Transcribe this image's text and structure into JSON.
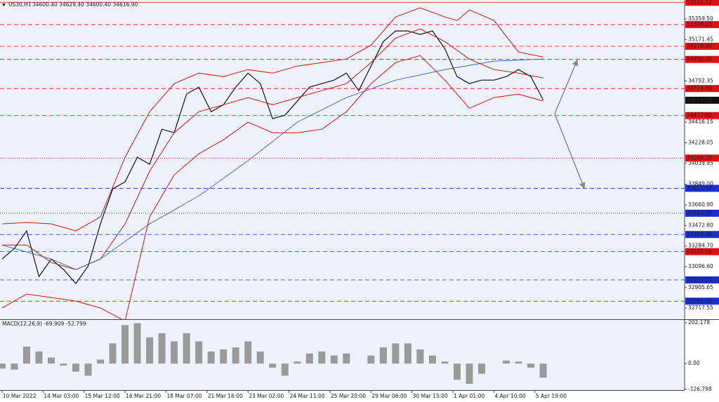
{
  "header": {
    "symbol": "US30,H1",
    "ohlc": "34600.40 34629.40 34600.40 34616.90"
  },
  "chart_data": [
    {
      "type": "line",
      "xlim": [
        -0.5,
        166.5
      ],
      "ylim": [
        32616,
        35533
      ],
      "yticks": [
        {
          "value": 35359.5,
          "label": "35359.50"
        },
        {
          "value": 35171.45,
          "label": "35171.45"
        },
        {
          "value": 34792.35,
          "label": "34792.35"
        },
        {
          "value": 34416.15,
          "label": "34416.15"
        },
        {
          "value": 34228.05,
          "label": "34228.05"
        },
        {
          "value": 34039.95,
          "label": "34039.95"
        },
        {
          "value": 33849,
          "label": "33849.00"
        },
        {
          "value": 33660.9,
          "label": "33660.90"
        },
        {
          "value": 33472.8,
          "label": "33472.80"
        },
        {
          "value": 33284.7,
          "label": "33284.70"
        },
        {
          "value": 33096.6,
          "label": "33096.60"
        },
        {
          "value": 32905.65,
          "label": "32905.65"
        },
        {
          "value": 32717.55,
          "label": "32717.55"
        }
      ],
      "levels": [
        {
          "value": 35512.12,
          "label": "35512.12",
          "color": "#e01010",
          "style": "solid"
        },
        {
          "value": 35308.23,
          "label": "35308.23",
          "color": "#e01010",
          "style": "dashed"
        },
        {
          "value": 35110,
          "label": "35110.00",
          "color": "#e01010",
          "style": "dashed"
        },
        {
          "value": 34990,
          "label": "34990.00",
          "color": "#e01010",
          "style": "dashed"
        },
        {
          "value": 34724,
          "label": "34724.00",
          "color": "#e01010",
          "style": "dashed"
        },
        {
          "value": 34616.9,
          "label": "34616.90",
          "color": "#111111",
          "style": "none"
        },
        {
          "value": 34477,
          "label": "34477.00",
          "color": "#e01010",
          "style": "dashed"
        },
        {
          "value": 34088.2,
          "label": "34088.20",
          "color": "#e01010",
          "style": "dotted"
        },
        {
          "value": 33811.92,
          "label": "33811.92",
          "color": "#1a2fd0",
          "style": "dashed"
        },
        {
          "value": 33584.59,
          "label": "33584.59",
          "color": "#1a2fd0",
          "style": "dotted"
        },
        {
          "value": 33390,
          "label": "33390.00",
          "color": "#1a2fd0",
          "style": "dashed"
        },
        {
          "value": 33233.63,
          "label": "33233.63",
          "color": "#e01010",
          "style": "dashed"
        },
        {
          "value": 32975,
          "label": "32975.00",
          "color": "#1a2fd0",
          "style": "dashed"
        },
        {
          "value": 32781,
          "label": "32781.00",
          "color": "#1a2fd0",
          "style": "dashed"
        }
      ],
      "series": [
        {
          "color": "#111111",
          "width": 1.2,
          "x": [
            0,
            3,
            6,
            9,
            12,
            15,
            18,
            21,
            24,
            27,
            30,
            33,
            36,
            39,
            42,
            45,
            48,
            51,
            54,
            57,
            60,
            63,
            66,
            69,
            72,
            75,
            78,
            81,
            84,
            87,
            90,
            93,
            96,
            99,
            102,
            105,
            108,
            111,
            114,
            117,
            120,
            123,
            126,
            129,
            132
          ],
          "values": [
            33166,
            33262,
            33423,
            33006,
            33166,
            33070,
            32942,
            33102,
            33487,
            33807,
            33871,
            34096,
            34032,
            34352,
            34320,
            34673,
            34737,
            34512,
            34576,
            34737,
            34865,
            34769,
            34448,
            34480,
            34608,
            34737,
            34769,
            34801,
            34865,
            34705,
            34929,
            35153,
            35250,
            35250,
            35218,
            35250,
            35089,
            34833,
            34769,
            34801,
            34801,
            34833,
            34897,
            34833,
            34621
          ]
        },
        {
          "color": "#e01010",
          "width": 1,
          "x": [
            0,
            6,
            12,
            18,
            24,
            30,
            36,
            42,
            48,
            54,
            60,
            66,
            72,
            78,
            84,
            90,
            96,
            102,
            108,
            111,
            114,
            120,
            126,
            132
          ],
          "values": [
            33487,
            33500,
            33487,
            33423,
            33551,
            34096,
            34512,
            34769,
            34865,
            34833,
            34897,
            34865,
            34929,
            34961,
            34993,
            35121,
            35378,
            35461,
            35378,
            35346,
            35442,
            35346,
            35057,
            35012
          ]
        },
        {
          "color": "#e01010",
          "width": 1,
          "x": [
            0,
            6,
            12,
            18,
            24,
            30,
            36,
            42,
            48,
            54,
            60,
            66,
            72,
            78,
            84,
            90,
            96,
            102,
            108,
            114,
            120,
            126,
            132
          ],
          "values": [
            33294,
            33294,
            33134,
            33070,
            33166,
            33487,
            33968,
            34320,
            34512,
            34576,
            34641,
            34576,
            34641,
            34705,
            34769,
            34961,
            35185,
            35269,
            35153,
            34993,
            34897,
            34865,
            34820
          ]
        },
        {
          "color": "#e01010",
          "width": 1,
          "x": [
            0,
            6,
            12,
            18,
            24,
            30,
            36,
            42,
            48,
            54,
            60,
            66,
            72,
            78,
            84,
            90,
            96,
            102,
            108,
            114,
            120,
            126,
            132
          ],
          "values": [
            32718,
            32846,
            32814,
            32782,
            32718,
            32600,
            33551,
            33935,
            34128,
            34256,
            34416,
            34320,
            34320,
            34352,
            34512,
            34769,
            34961,
            35025,
            34801,
            34544,
            34641,
            34673,
            34609
          ]
        },
        {
          "color": "#3048d0",
          "width": 0.8,
          "x": [
            0,
            12,
            18,
            24,
            36,
            48,
            60,
            72,
            84,
            96,
            108,
            120,
            132
          ],
          "values": [
            33294,
            33166,
            33070,
            33166,
            33487,
            33743,
            34064,
            34416,
            34641,
            34801,
            34897,
            34974,
            34993
          ]
        }
      ]
    },
    {
      "type": "bar",
      "title": "MACD(12,26,9) -69.909 -52.799",
      "color": "#9a9a9a",
      "xlim": [
        -0.5,
        166.5
      ],
      "ylim": [
        -131,
        216
      ],
      "yticks": [
        202.178,
        {
          "value": 0,
          "label": "0.00"
        },
        -126.798
      ],
      "x": [
        0,
        3,
        6,
        9,
        12,
        15,
        18,
        21,
        24,
        27,
        30,
        33,
        36,
        39,
        42,
        45,
        48,
        51,
        54,
        57,
        60,
        63,
        66,
        69,
        72,
        75,
        78,
        81,
        84,
        87,
        90,
        93,
        96,
        99,
        102,
        105,
        108,
        111,
        114,
        117,
        120,
        123,
        126,
        129,
        132
      ],
      "values": [
        -25,
        -30,
        84,
        60,
        30,
        -10,
        -40,
        -60,
        20,
        100,
        190,
        200,
        130,
        150,
        110,
        150,
        110,
        60,
        70,
        80,
        110,
        60,
        -20,
        -60,
        10,
        50,
        60,
        40,
        50,
        0,
        40,
        80,
        100,
        100,
        70,
        40,
        10,
        -80,
        -100,
        -50,
        0,
        15,
        10,
        -20,
        -70
      ],
      "xticks": [
        {
          "value": 0,
          "label": "10 Mar 2022"
        },
        {
          "value": 10,
          "label": "14 Mar 03:00"
        },
        {
          "value": 20,
          "label": "15 Mar 12:00"
        },
        {
          "value": 30,
          "label": "16 Mar 21:00"
        },
        {
          "value": 40,
          "label": "18 Mar 07:00"
        },
        {
          "value": 50,
          "label": "21 Mar 16:00"
        },
        {
          "value": 60,
          "label": "23 Mar 02:00"
        },
        {
          "value": 70,
          "label": "24 Mar 11:00"
        },
        {
          "value": 80,
          "label": "25 Mar 20:00"
        },
        {
          "value": 90,
          "label": "29 Mar 06:00"
        },
        {
          "value": 100,
          "label": "30 Mar 15:00"
        },
        {
          "value": 110,
          "label": "1 Apr 01:00"
        },
        {
          "value": 120,
          "label": "4 Apr 10:00"
        },
        {
          "value": 130,
          "label": "5 Apr 19:00"
        }
      ]
    }
  ]
}
